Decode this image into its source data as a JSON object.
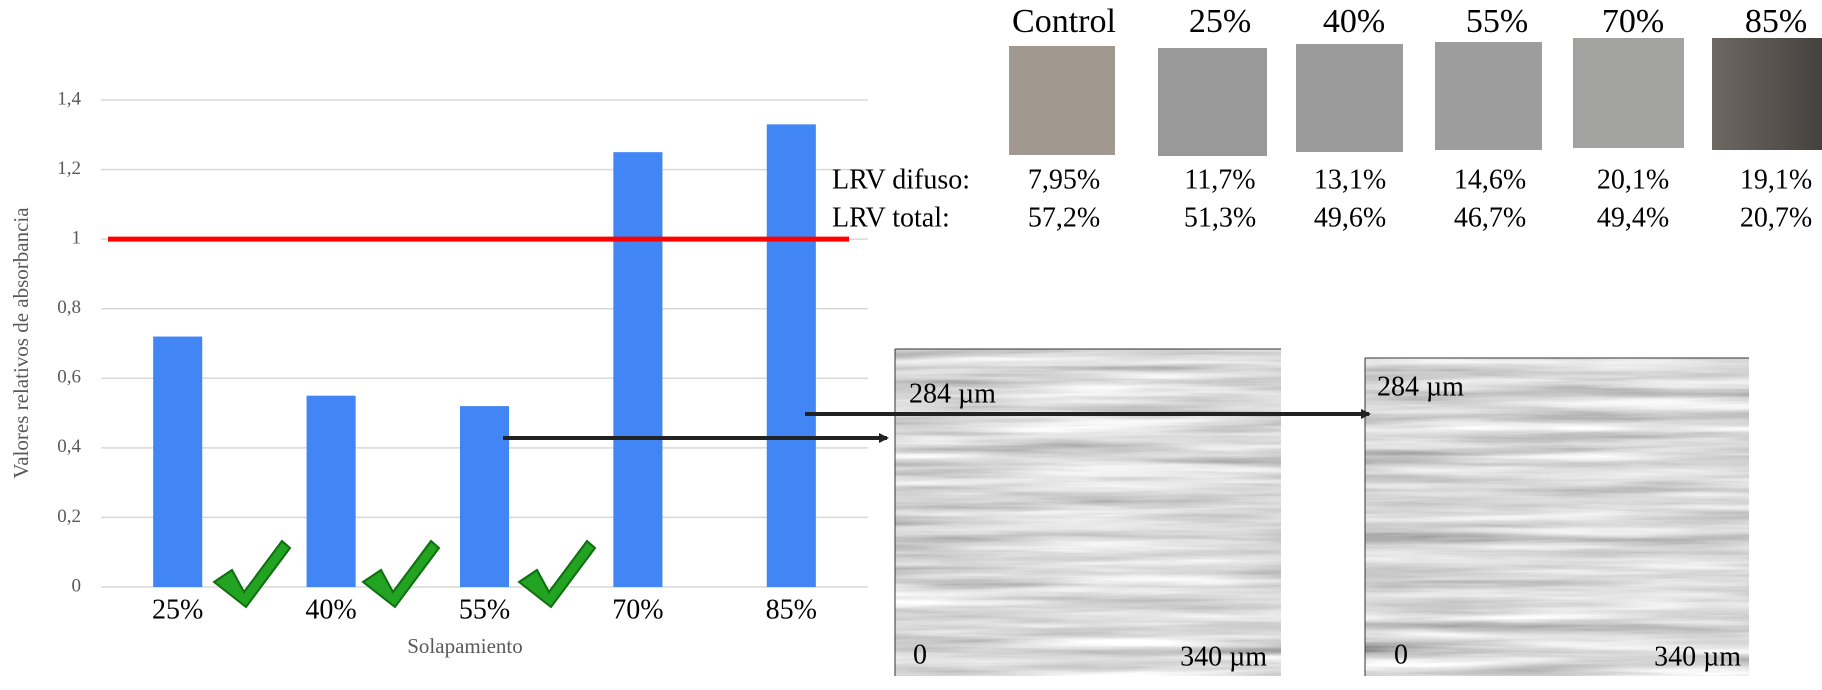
{
  "chart_data": {
    "type": "bar",
    "y_label": "Valores relativos de absorbancia",
    "x_label": "Solapamiento",
    "categories": [
      "25%",
      "40%",
      "55%",
      "70%",
      "85%"
    ],
    "values": [
      0.72,
      0.55,
      0.52,
      1.25,
      1.33
    ],
    "color": "#4285f4",
    "ylim": [
      0,
      1.4
    ],
    "yticks": [
      0,
      {
        "value": 0.2,
        "label": "0,2"
      },
      {
        "value": 0.4,
        "label": "0,4"
      },
      {
        "value": 0.6,
        "label": "0,6"
      },
      {
        "value": 0.8,
        "label": "0,8"
      },
      1,
      {
        "value": 1.2,
        "label": "1,2"
      },
      {
        "value": 1.4,
        "label": "1,4"
      }
    ],
    "grid": true,
    "reference_line": {
      "value": 1,
      "color": "#ff0000"
    }
  },
  "samples": {
    "labels": [
      "Control",
      "25%",
      "40%",
      "55%",
      "70%",
      "85%"
    ],
    "lrv_diffuse_label": "LRV difuso:",
    "lrv_diffuse": [
      "7,95%",
      "11,7%",
      "13,1%",
      "14,6%",
      "20,1%",
      "19,1%"
    ],
    "lrv_total_label": "LRV total:",
    "lrv_total": [
      "57,2%",
      "51,3%",
      "49,6%",
      "46,7%",
      "49,4%",
      "20,7%"
    ]
  },
  "micrographs": [
    {
      "height": "284 µm",
      "origin": "0",
      "width": "340 µm"
    },
    {
      "height": "284 µm",
      "origin": "0",
      "width": "340 µm"
    }
  ]
}
